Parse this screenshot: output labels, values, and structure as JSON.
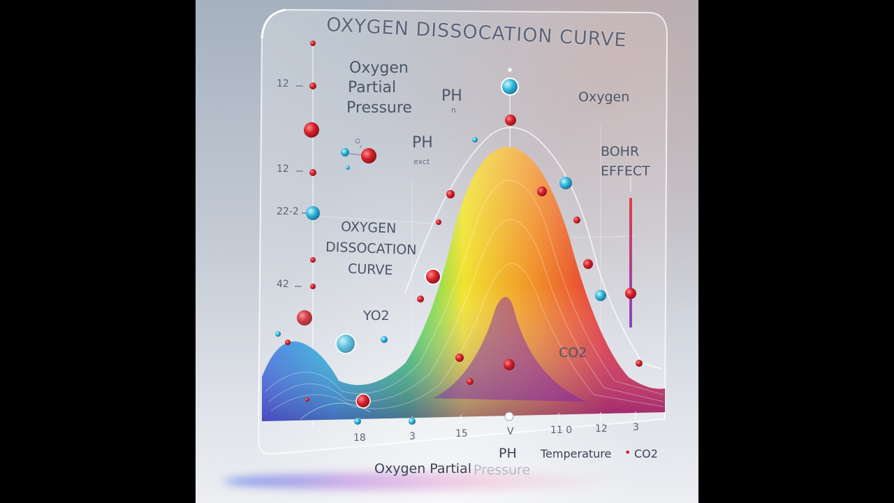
{
  "title": "OXYGEN DISSOCATION CURVE",
  "labels": {
    "oxygen_partial": "Oxygen",
    "partial": "Partial",
    "pressure": "Pressure",
    "ph_top": "PH",
    "ph_small": "n",
    "ph_mid": "PH",
    "exct": "exct",
    "oxygen_right": "Oxygen",
    "bohr": "BOHR",
    "effect": "EFFECT",
    "inner_oxygen": "OXYGEN",
    "inner_dissocation": "DISSOCATION",
    "inner_curve": "CURVE",
    "yo2": "YO2",
    "co2_inner": "CO2"
  },
  "y_ticks": [
    "12",
    "12",
    "22-2",
    "42"
  ],
  "x_ticks": [
    "18",
    "3",
    "15",
    "V",
    "11 0",
    "12",
    "3"
  ],
  "footer": {
    "oxygen_partial_pressure": "Oxygen Partial",
    "faded": "Pressure",
    "ph": "PH",
    "temperature": "Temperature",
    "bullet": "•",
    "co2": "CO2"
  },
  "colors": {
    "molecule_red": "#d4202a",
    "molecule_blue": "#2fb6d8",
    "spectrum": [
      "#2d78e8",
      "#18c7e0",
      "#25d36a",
      "#f2e425",
      "#f28a1e",
      "#e5232f",
      "#8a2fc9"
    ]
  }
}
